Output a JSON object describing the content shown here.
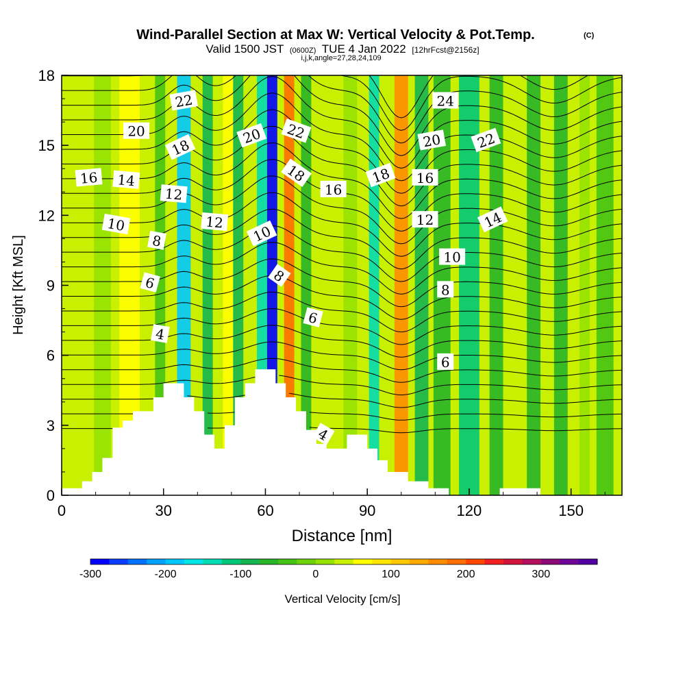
{
  "chart_data": {
    "type": "heatmap",
    "title": "Wind-Parallel Section at Max W: Vertical Velocity & Pot.Temp.",
    "title_mark": "(C)",
    "subtitle_prefix": "Valid 1500 JST",
    "subtitle_utc": "(0600Z)",
    "subtitle_date": "TUE 4 Jan 2022",
    "subtitle_run": "[12hrFcst@2156z]",
    "subtitle2": "i,j,k,angle=27,28,24,109",
    "xlabel": "Distance [nm]",
    "ylabel": "Height [Kft MSL]",
    "xlim": [
      0,
      165
    ],
    "ylim": [
      0,
      18
    ],
    "x_ticks": [
      0,
      30,
      60,
      90,
      120,
      150
    ],
    "y_ticks": [
      0,
      3,
      6,
      9,
      12,
      15,
      18
    ],
    "colorbar": {
      "label": "Vertical Velocity [cm/s]",
      "range": [
        -300,
        375
      ],
      "tick_values": [
        -300,
        -200,
        -100,
        0,
        100,
        200,
        300
      ],
      "tick_labels": [
        "-300",
        "-200",
        "-100",
        "0",
        "100",
        "200",
        "300"
      ],
      "colors": [
        "#0000ff",
        "#0a3cff",
        "#0070ff",
        "#00a0ff",
        "#00c8ff",
        "#00e6e6",
        "#00dcb4",
        "#00c878",
        "#14b450",
        "#28b428",
        "#46c314",
        "#6ed20a",
        "#96e100",
        "#c8f000",
        "#ffff00",
        "#ffe600",
        "#ffc800",
        "#ffaa00",
        "#ff8c00",
        "#ff6e00",
        "#ff4600",
        "#f01e1e",
        "#d2143c",
        "#b40f5a",
        "#8c0a78",
        "#6e0596",
        "#5000a0"
      ]
    },
    "velocity_bands": [
      {
        "x": 5,
        "w": 3,
        "value": 40
      },
      {
        "x": 12,
        "w": 5,
        "value": 15
      },
      {
        "x": 20,
        "w": 6,
        "value": 60
      },
      {
        "x": 29,
        "w": 3,
        "value": -40
      },
      {
        "x": 36,
        "w": 4,
        "value": -180
      },
      {
        "x": 43,
        "w": 3,
        "value": -90
      },
      {
        "x": 49,
        "w": 3,
        "value": 60
      },
      {
        "x": 52,
        "w": 3,
        "value": -100
      },
      {
        "x": 59,
        "w": 3,
        "value": -150
      },
      {
        "x": 62,
        "w": 3,
        "value": -290
      },
      {
        "x": 67,
        "w": 3,
        "value": 180
      },
      {
        "x": 72,
        "w": 3,
        "value": -70
      },
      {
        "x": 78,
        "w": 3,
        "value": 40
      },
      {
        "x": 85,
        "w": 4,
        "value": 0
      },
      {
        "x": 92,
        "w": 3,
        "value": -150
      },
      {
        "x": 100,
        "w": 4,
        "value": 170
      },
      {
        "x": 106,
        "w": 4,
        "value": -100
      },
      {
        "x": 112,
        "w": 5,
        "value": -70
      },
      {
        "x": 120,
        "w": 6,
        "value": -120
      },
      {
        "x": 128,
        "w": 4,
        "value": -60
      },
      {
        "x": 133,
        "w": 4,
        "value": 30
      },
      {
        "x": 139,
        "w": 4,
        "value": -60
      },
      {
        "x": 147,
        "w": 4,
        "value": -60
      },
      {
        "x": 154,
        "w": 3,
        "value": 0
      },
      {
        "x": 160,
        "w": 5,
        "value": -40
      }
    ],
    "terrain": [
      [
        0,
        0.3
      ],
      [
        6,
        0.3
      ],
      [
        6,
        0.6
      ],
      [
        9,
        0.6
      ],
      [
        9,
        1
      ],
      [
        12,
        1
      ],
      [
        12,
        1.6
      ],
      [
        15,
        1.6
      ],
      [
        15,
        2.9
      ],
      [
        18,
        2.9
      ],
      [
        18,
        3.2
      ],
      [
        21,
        3.2
      ],
      [
        21,
        3.6
      ],
      [
        27,
        3.6
      ],
      [
        27,
        4.2
      ],
      [
        30,
        4.2
      ],
      [
        30,
        4.8
      ],
      [
        36,
        4.8
      ],
      [
        36,
        4.2
      ],
      [
        39,
        4.2
      ],
      [
        39,
        3.6
      ],
      [
        42,
        3.6
      ],
      [
        42,
        2.6
      ],
      [
        45,
        2.6
      ],
      [
        45,
        2
      ],
      [
        48,
        2
      ],
      [
        48,
        3
      ],
      [
        51,
        3
      ],
      [
        51,
        4.2
      ],
      [
        54,
        4.2
      ],
      [
        54,
        4.8
      ],
      [
        57,
        4.8
      ],
      [
        57,
        5.4
      ],
      [
        63,
        5.4
      ],
      [
        63,
        4.8
      ],
      [
        66,
        4.8
      ],
      [
        66,
        4.2
      ],
      [
        69,
        4.2
      ],
      [
        69,
        3.6
      ],
      [
        72,
        3.6
      ],
      [
        72,
        2.8
      ],
      [
        75,
        2.8
      ],
      [
        75,
        2.2
      ],
      [
        78,
        2.2
      ],
      [
        78,
        2
      ],
      [
        84,
        2
      ],
      [
        84,
        2.6
      ],
      [
        90,
        2.6
      ],
      [
        90,
        2
      ],
      [
        93,
        2
      ],
      [
        93,
        1.5
      ],
      [
        96,
        1.5
      ],
      [
        96,
        1
      ],
      [
        102,
        1
      ],
      [
        102,
        0.6
      ],
      [
        108,
        0.6
      ],
      [
        108,
        0.3
      ],
      [
        114,
        0.3
      ],
      [
        114,
        0
      ],
      [
        129,
        0
      ],
      [
        129,
        0.3
      ],
      [
        141,
        0.3
      ],
      [
        141,
        0
      ],
      [
        165,
        0
      ]
    ],
    "isentropes": {
      "theta_min": 2,
      "theta_max": 27,
      "step": 1,
      "label_values": [
        4,
        6,
        8,
        10,
        12,
        14,
        16,
        18,
        20,
        22,
        24
      ]
    },
    "contour_labels": [
      {
        "text": "22",
        "x": 36,
        "y": 16.9,
        "rot": 10
      },
      {
        "text": "24",
        "x": 113,
        "y": 16.9,
        "rot": 0
      },
      {
        "text": "20",
        "x": 22,
        "y": 15.6,
        "rot": 0
      },
      {
        "text": "18",
        "x": 35,
        "y": 14.9,
        "rot": 25
      },
      {
        "text": "20",
        "x": 56,
        "y": 15.4,
        "rot": 20
      },
      {
        "text": "22",
        "x": 69,
        "y": 15.6,
        "rot": -20
      },
      {
        "text": "20",
        "x": 109,
        "y": 15.2,
        "rot": 10
      },
      {
        "text": "22",
        "x": 125,
        "y": 15.2,
        "rot": 20
      },
      {
        "text": "16",
        "x": 8,
        "y": 13.6,
        "rot": 5
      },
      {
        "text": "14",
        "x": 19,
        "y": 13.5,
        "rot": -5
      },
      {
        "text": "12",
        "x": 33,
        "y": 12.9,
        "rot": -5
      },
      {
        "text": "18",
        "x": 69,
        "y": 13.8,
        "rot": -35
      },
      {
        "text": "16",
        "x": 80,
        "y": 13.1,
        "rot": 0
      },
      {
        "text": "18",
        "x": 94,
        "y": 13.7,
        "rot": 20
      },
      {
        "text": "16",
        "x": 107,
        "y": 13.6,
        "rot": 0
      },
      {
        "text": "14",
        "x": 127,
        "y": 11.8,
        "rot": 25
      },
      {
        "text": "10",
        "x": 16,
        "y": 11.6,
        "rot": -10
      },
      {
        "text": "12",
        "x": 45,
        "y": 11.7,
        "rot": -5
      },
      {
        "text": "10",
        "x": 59,
        "y": 11.2,
        "rot": 25
      },
      {
        "text": "12",
        "x": 107,
        "y": 11.8,
        "rot": 0
      },
      {
        "text": "8",
        "x": 28,
        "y": 10.9,
        "rot": -10
      },
      {
        "text": "10",
        "x": 115,
        "y": 10.2,
        "rot": 0
      },
      {
        "text": "6",
        "x": 26,
        "y": 9.1,
        "rot": -15
      },
      {
        "text": "8",
        "x": 64,
        "y": 9.4,
        "rot": -35
      },
      {
        "text": "8",
        "x": 113,
        "y": 8.8,
        "rot": 0
      },
      {
        "text": "6",
        "x": 74,
        "y": 7.6,
        "rot": -15
      },
      {
        "text": "4",
        "x": 29,
        "y": 6.9,
        "rot": -10
      },
      {
        "text": "6",
        "x": 113,
        "y": 5.7,
        "rot": 0
      },
      {
        "text": "4",
        "x": 77,
        "y": 2.6,
        "rot": -30
      }
    ]
  }
}
